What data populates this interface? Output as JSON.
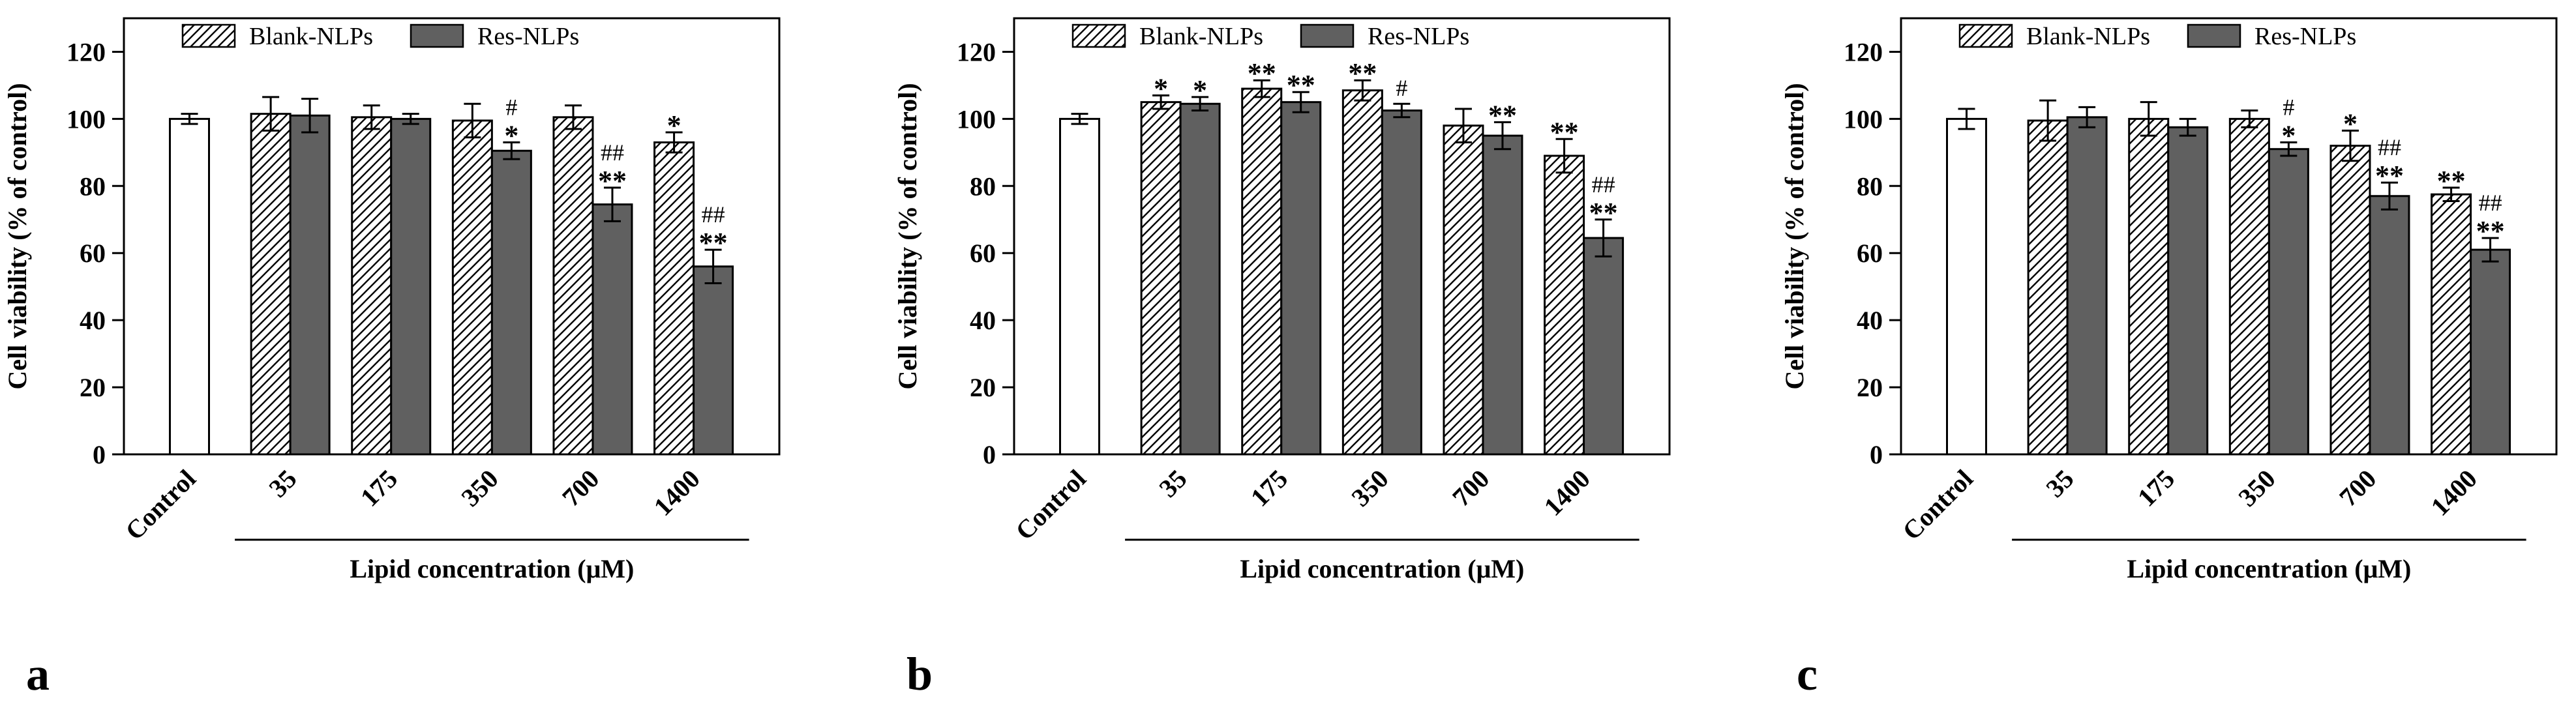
{
  "colors": {
    "control": "#ffffff",
    "blank": "hatched",
    "res": "#606060",
    "axis": "#000000"
  },
  "chart_data": [
    {
      "type": "bar",
      "panel": "a",
      "ylabel": "Cell viability (% of control)",
      "xlabel": "Lipid concentration (μM)",
      "ylim": [
        0,
        130
      ],
      "yticks": [
        0,
        20,
        40,
        60,
        80,
        100,
        120
      ],
      "legend": [
        "Blank-NLPs",
        "Res-NLPs"
      ],
      "control": {
        "label": "Control",
        "value": 100,
        "err": 1.5
      },
      "categories": [
        "35",
        "175",
        "350",
        "700",
        "1400"
      ],
      "series": [
        {
          "name": "Blank-NLPs",
          "values": [
            101.5,
            100.5,
            99.5,
            100.5,
            93
          ],
          "errors": [
            5,
            3.5,
            5,
            3.5,
            3
          ],
          "annotations": [
            "",
            "",
            "",
            "",
            "*"
          ]
        },
        {
          "name": "Res-NLPs",
          "values": [
            101,
            100,
            90.5,
            74.5,
            56
          ],
          "errors": [
            5,
            1.5,
            2.5,
            5,
            5
          ],
          "annotations": [
            "",
            "",
            "* #",
            "** ##",
            "** ##"
          ]
        }
      ]
    },
    {
      "type": "bar",
      "panel": "b",
      "ylabel": "Cell viability (% of control)",
      "xlabel": "Lipid concentration (μM)",
      "ylim": [
        0,
        130
      ],
      "yticks": [
        0,
        20,
        40,
        60,
        80,
        100,
        120
      ],
      "legend": [
        "Blank-NLPs",
        "Res-NLPs"
      ],
      "control": {
        "label": "Control",
        "value": 100,
        "err": 1.5
      },
      "categories": [
        "35",
        "175",
        "350",
        "700",
        "1400"
      ],
      "series": [
        {
          "name": "Blank-NLPs",
          "values": [
            105,
            109,
            108.5,
            98,
            89
          ],
          "errors": [
            2,
            2.5,
            3,
            5,
            5
          ],
          "annotations": [
            "*",
            "**",
            "**",
            "",
            "**"
          ]
        },
        {
          "name": "Res-NLPs",
          "values": [
            104.5,
            105,
            102.5,
            95,
            64.5
          ],
          "errors": [
            2,
            3,
            2,
            4,
            5.5
          ],
          "annotations": [
            "*",
            "**",
            "#",
            "**",
            "** ##"
          ]
        }
      ]
    },
    {
      "type": "bar",
      "panel": "c",
      "ylabel": "Cell viability (% of control)",
      "xlabel": "Lipid concentration (μM)",
      "ylim": [
        0,
        130
      ],
      "yticks": [
        0,
        20,
        40,
        60,
        80,
        100,
        120
      ],
      "legend": [
        "Blank-NLPs",
        "Res-NLPs"
      ],
      "control": {
        "label": "Control",
        "value": 100,
        "err": 3
      },
      "categories": [
        "35",
        "175",
        "350",
        "700",
        "1400"
      ],
      "series": [
        {
          "name": "Blank-NLPs",
          "values": [
            99.5,
            100,
            100,
            92,
            77.5
          ],
          "errors": [
            6,
            5,
            2.5,
            4.5,
            2
          ],
          "annotations": [
            "",
            "",
            "",
            "*",
            "**"
          ]
        },
        {
          "name": "Res-NLPs",
          "values": [
            100.5,
            97.5,
            91,
            77,
            61
          ],
          "errors": [
            3,
            2.5,
            2,
            4,
            3.5
          ],
          "annotations": [
            "",
            "",
            "* #",
            "** ##",
            "** ##"
          ]
        }
      ]
    }
  ]
}
